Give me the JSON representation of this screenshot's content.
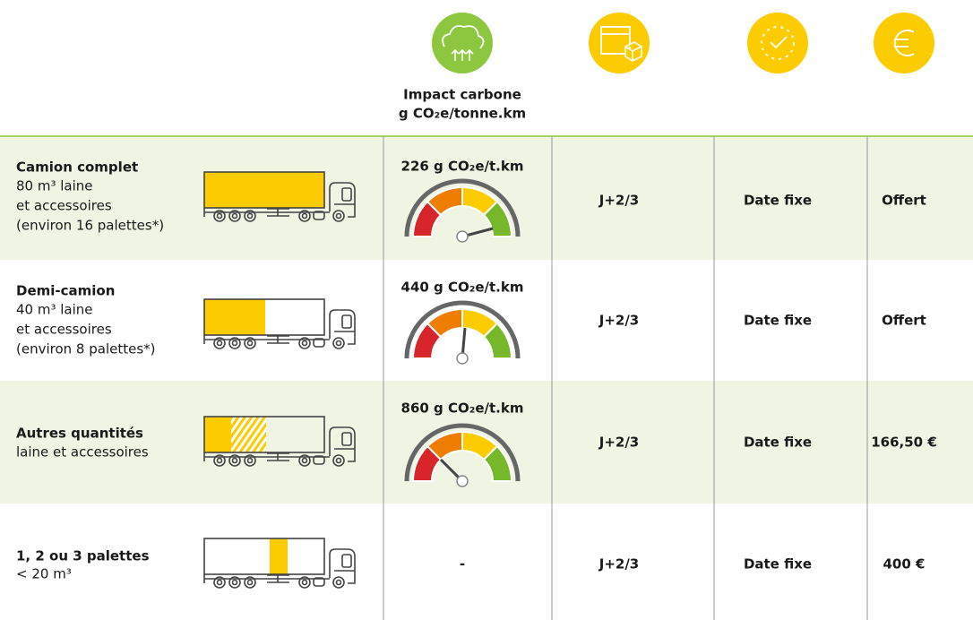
{
  "header": {
    "carbon_title": "Impact carbone",
    "carbon_unit": "g CO₂e/tonne.km"
  },
  "rows": [
    {
      "title": "Camion complet",
      "details": [
        "80 m³ laine",
        "et accessoires",
        "(environ 16 palettes*)"
      ],
      "carbon": "226 g CO₂e/t.km",
      "delay": "J+2/3",
      "date": "Date fixe",
      "price": "Offert"
    },
    {
      "title": "Demi-camion",
      "details": [
        "40 m³ laine",
        "et accessoires",
        "(environ 8 palettes*)"
      ],
      "carbon": "440 g CO₂e/t.km",
      "delay": "J+2/3",
      "date": "Date fixe",
      "price": "Offert"
    },
    {
      "title": "Autres quantités",
      "details": [
        "laine et accessoires"
      ],
      "carbon": "860 g CO₂e/t.km",
      "delay": "J+2/3",
      "date": "Date fixe",
      "price": "166,50 €"
    },
    {
      "title": "1, 2 ou 3 palettes",
      "details": [
        "< 20 m³"
      ],
      "carbon": "-",
      "delay": "J+2/3",
      "date": "Date fixe",
      "price": "400 €"
    }
  ]
}
